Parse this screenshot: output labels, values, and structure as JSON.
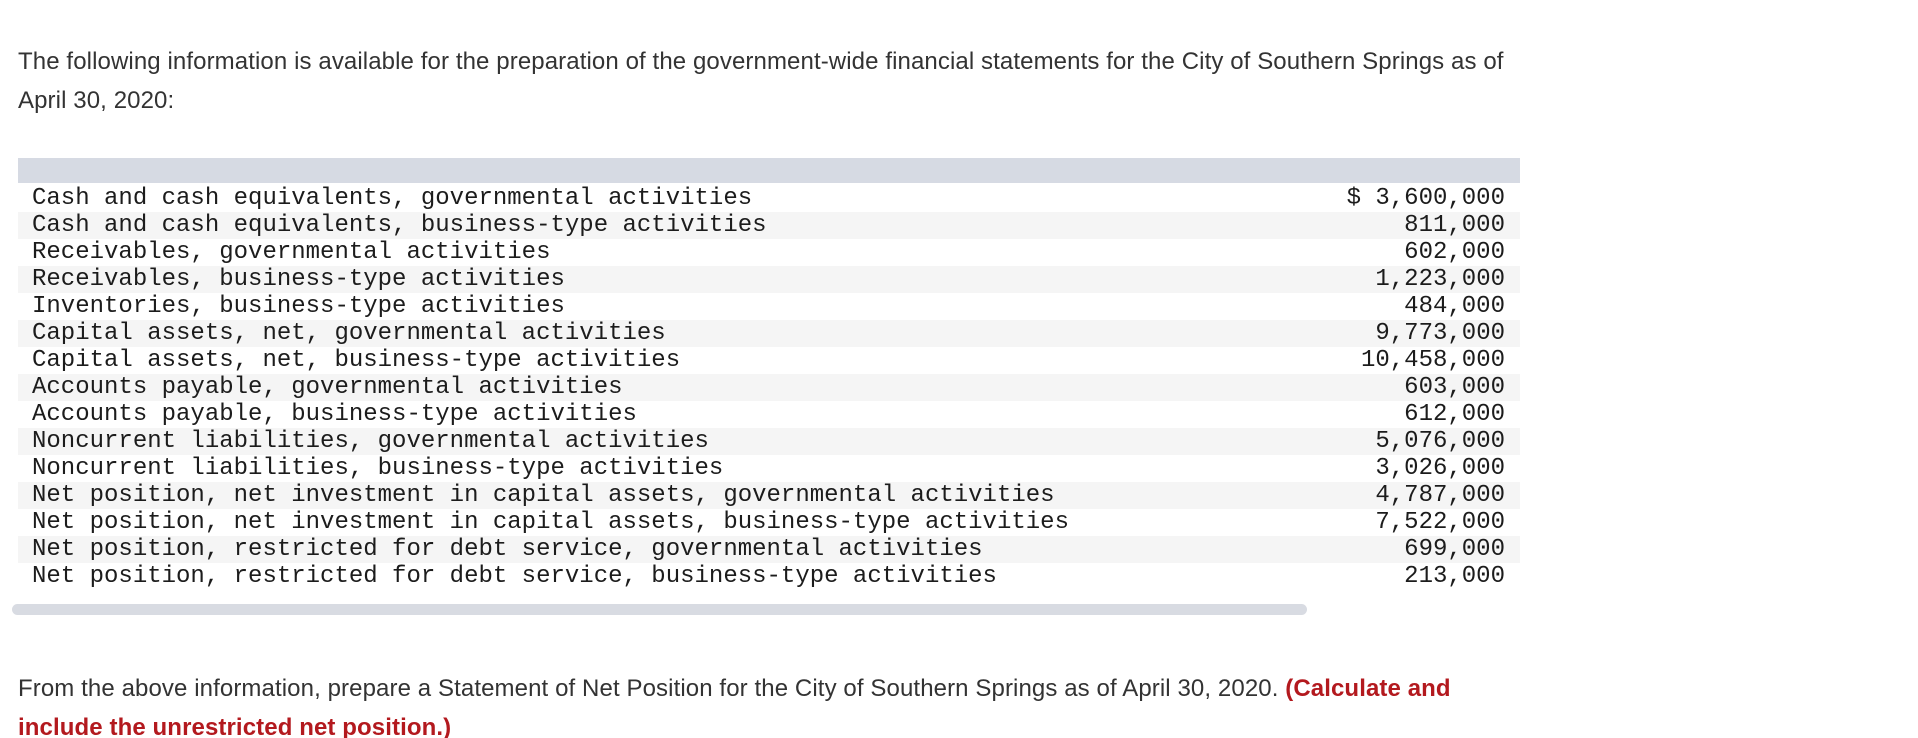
{
  "intro": {
    "text": "The following information is available for the preparation of the government-wide financial statements for the City of Southern Springs as of April 30, 2020:"
  },
  "table": {
    "rows": [
      {
        "label": "Cash and cash equivalents, governmental activities",
        "value": "$ 3,600,000"
      },
      {
        "label": "Cash and cash equivalents, business-type activities",
        "value": "811,000"
      },
      {
        "label": "Receivables, governmental activities",
        "value": "602,000"
      },
      {
        "label": "Receivables, business-type activities",
        "value": "1,223,000"
      },
      {
        "label": "Inventories, business-type activities",
        "value": "484,000"
      },
      {
        "label": "Capital assets, net, governmental activities",
        "value": "9,773,000"
      },
      {
        "label": "Capital assets, net, business-type activities",
        "value": "10,458,000"
      },
      {
        "label": "Accounts payable, governmental activities",
        "value": "603,000"
      },
      {
        "label": "Accounts payable, business-type activities",
        "value": "612,000"
      },
      {
        "label": "Noncurrent liabilities, governmental activities",
        "value": "5,076,000"
      },
      {
        "label": "Noncurrent liabilities, business-type activities",
        "value": "3,026,000"
      },
      {
        "label": "Net position, net investment in capital assets, governmental activities",
        "value": "4,787,000"
      },
      {
        "label": "Net position, net investment in capital assets, business-type activities",
        "value": "7,522,000"
      },
      {
        "label": "Net position, restricted for debt service, governmental activities",
        "value": "699,000"
      },
      {
        "label": "Net position, restricted for debt service, business-type activities",
        "value": "213,000"
      }
    ]
  },
  "instruction": {
    "text_black": "From the above information, prepare a Statement of Net Position for the City of Southern Springs as of April 30, 2020. ",
    "text_red": "(Calculate and include the unrestricted net position.)"
  },
  "colors": {
    "body_text": "#333333",
    "table_text": "#1c1c1c",
    "table_header_band": "#d6dae3",
    "table_alt_row": "#f5f5f5",
    "scrollbar": "#d8dbe2",
    "emphasis_red": "#b3191e"
  }
}
